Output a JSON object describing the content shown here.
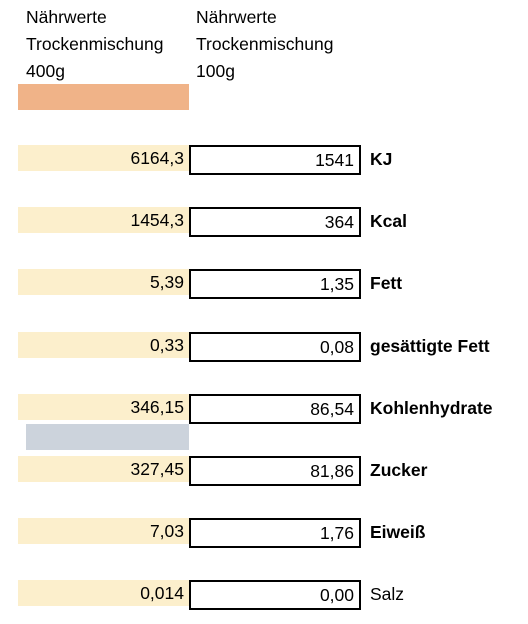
{
  "headers": [
    {
      "lines": [
        "Nährwerte",
        "Trockenmischung",
        "400g"
      ]
    },
    {
      "lines": [
        "Nährwerte",
        "Trockenmischung",
        "100g"
      ]
    }
  ],
  "colors": {
    "header_bar": "#f0b388",
    "cell_fill": "#fcefcc",
    "separator_bar": "#ccd3dc"
  },
  "rows": [
    {
      "total": "6164,3",
      "per100": "1541",
      "label": "KJ",
      "bold": true
    },
    {
      "total": "1454,3",
      "per100": "364",
      "label": "Kcal",
      "bold": true
    },
    {
      "total": "5,39",
      "per100": "1,35",
      "label": "Fett",
      "bold": true
    },
    {
      "total": "0,33",
      "per100": "0,08",
      "label": "gesättigte Fett",
      "bold": true
    },
    {
      "total": "346,15",
      "per100": "86,54",
      "label": "Kohlenhydrate",
      "bold": true
    },
    {
      "total": "327,45",
      "per100": "81,86",
      "label": "Zucker",
      "bold": true
    },
    {
      "total": "7,03",
      "per100": "1,76",
      "label": "Eiweiß",
      "bold": true
    },
    {
      "total": "0,014",
      "per100": "0,00",
      "label": "Salz",
      "bold": false
    }
  ]
}
